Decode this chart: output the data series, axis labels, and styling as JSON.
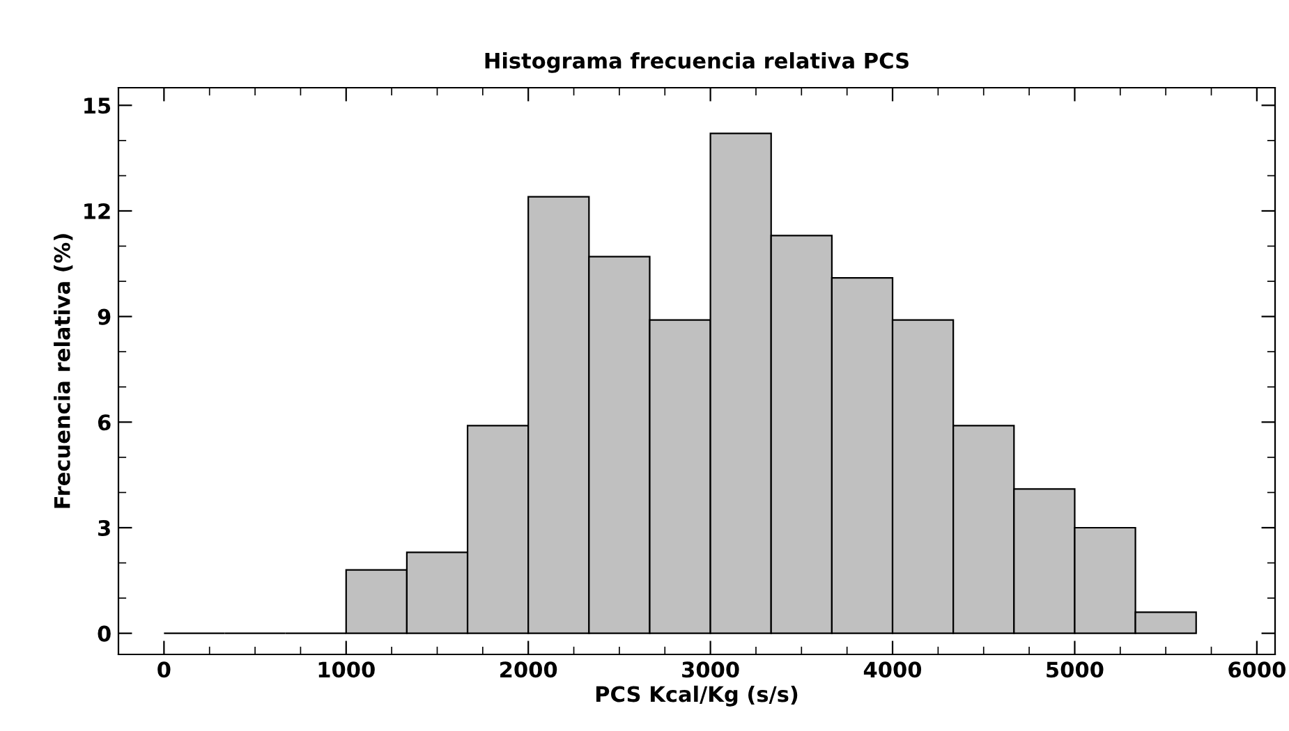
{
  "chart_data": {
    "type": "histogram",
    "title": "Histograma frecuencia relativa PCS",
    "xlabel": "PCS Kcal/Kg (s/s)",
    "ylabel": "Frecuencia relativa (%)",
    "bins": [
      0,
      333.3,
      666.7,
      1000,
      1333.3,
      1666.7,
      2000,
      2333.3,
      2666.7,
      3000,
      3333.3,
      3666.7,
      4000,
      4333.3,
      4666.7,
      5000,
      5333.3,
      5666.7
    ],
    "values": [
      0,
      0,
      0,
      1.8,
      2.3,
      5.9,
      12.4,
      10.7,
      8.9,
      14.2,
      11.3,
      10.1,
      8.9,
      5.9,
      4.1,
      3.0,
      0.6
    ],
    "colors": [
      "#000000",
      "#000000",
      "#000000",
      "#c0c0c0",
      "#c0c0c0",
      "#c0c0c0",
      "#c0c0c0",
      "#c0c0c0",
      "#c0c0c0",
      "#c0c0c0",
      "#c0c0c0",
      "#c0c0c0",
      "#c0c0c0",
      "#c0c0c0",
      "#c0c0c0",
      "#c0c0c0",
      "#c0c0c0"
    ],
    "xlim": [
      -250,
      6100
    ],
    "xticks": [
      0,
      1000,
      2000,
      3000,
      4000,
      5000,
      6000
    ],
    "ylim": [
      -0.6,
      15.5
    ],
    "yticks": [
      0,
      3,
      6,
      9,
      12,
      15
    ],
    "grid": false
  }
}
